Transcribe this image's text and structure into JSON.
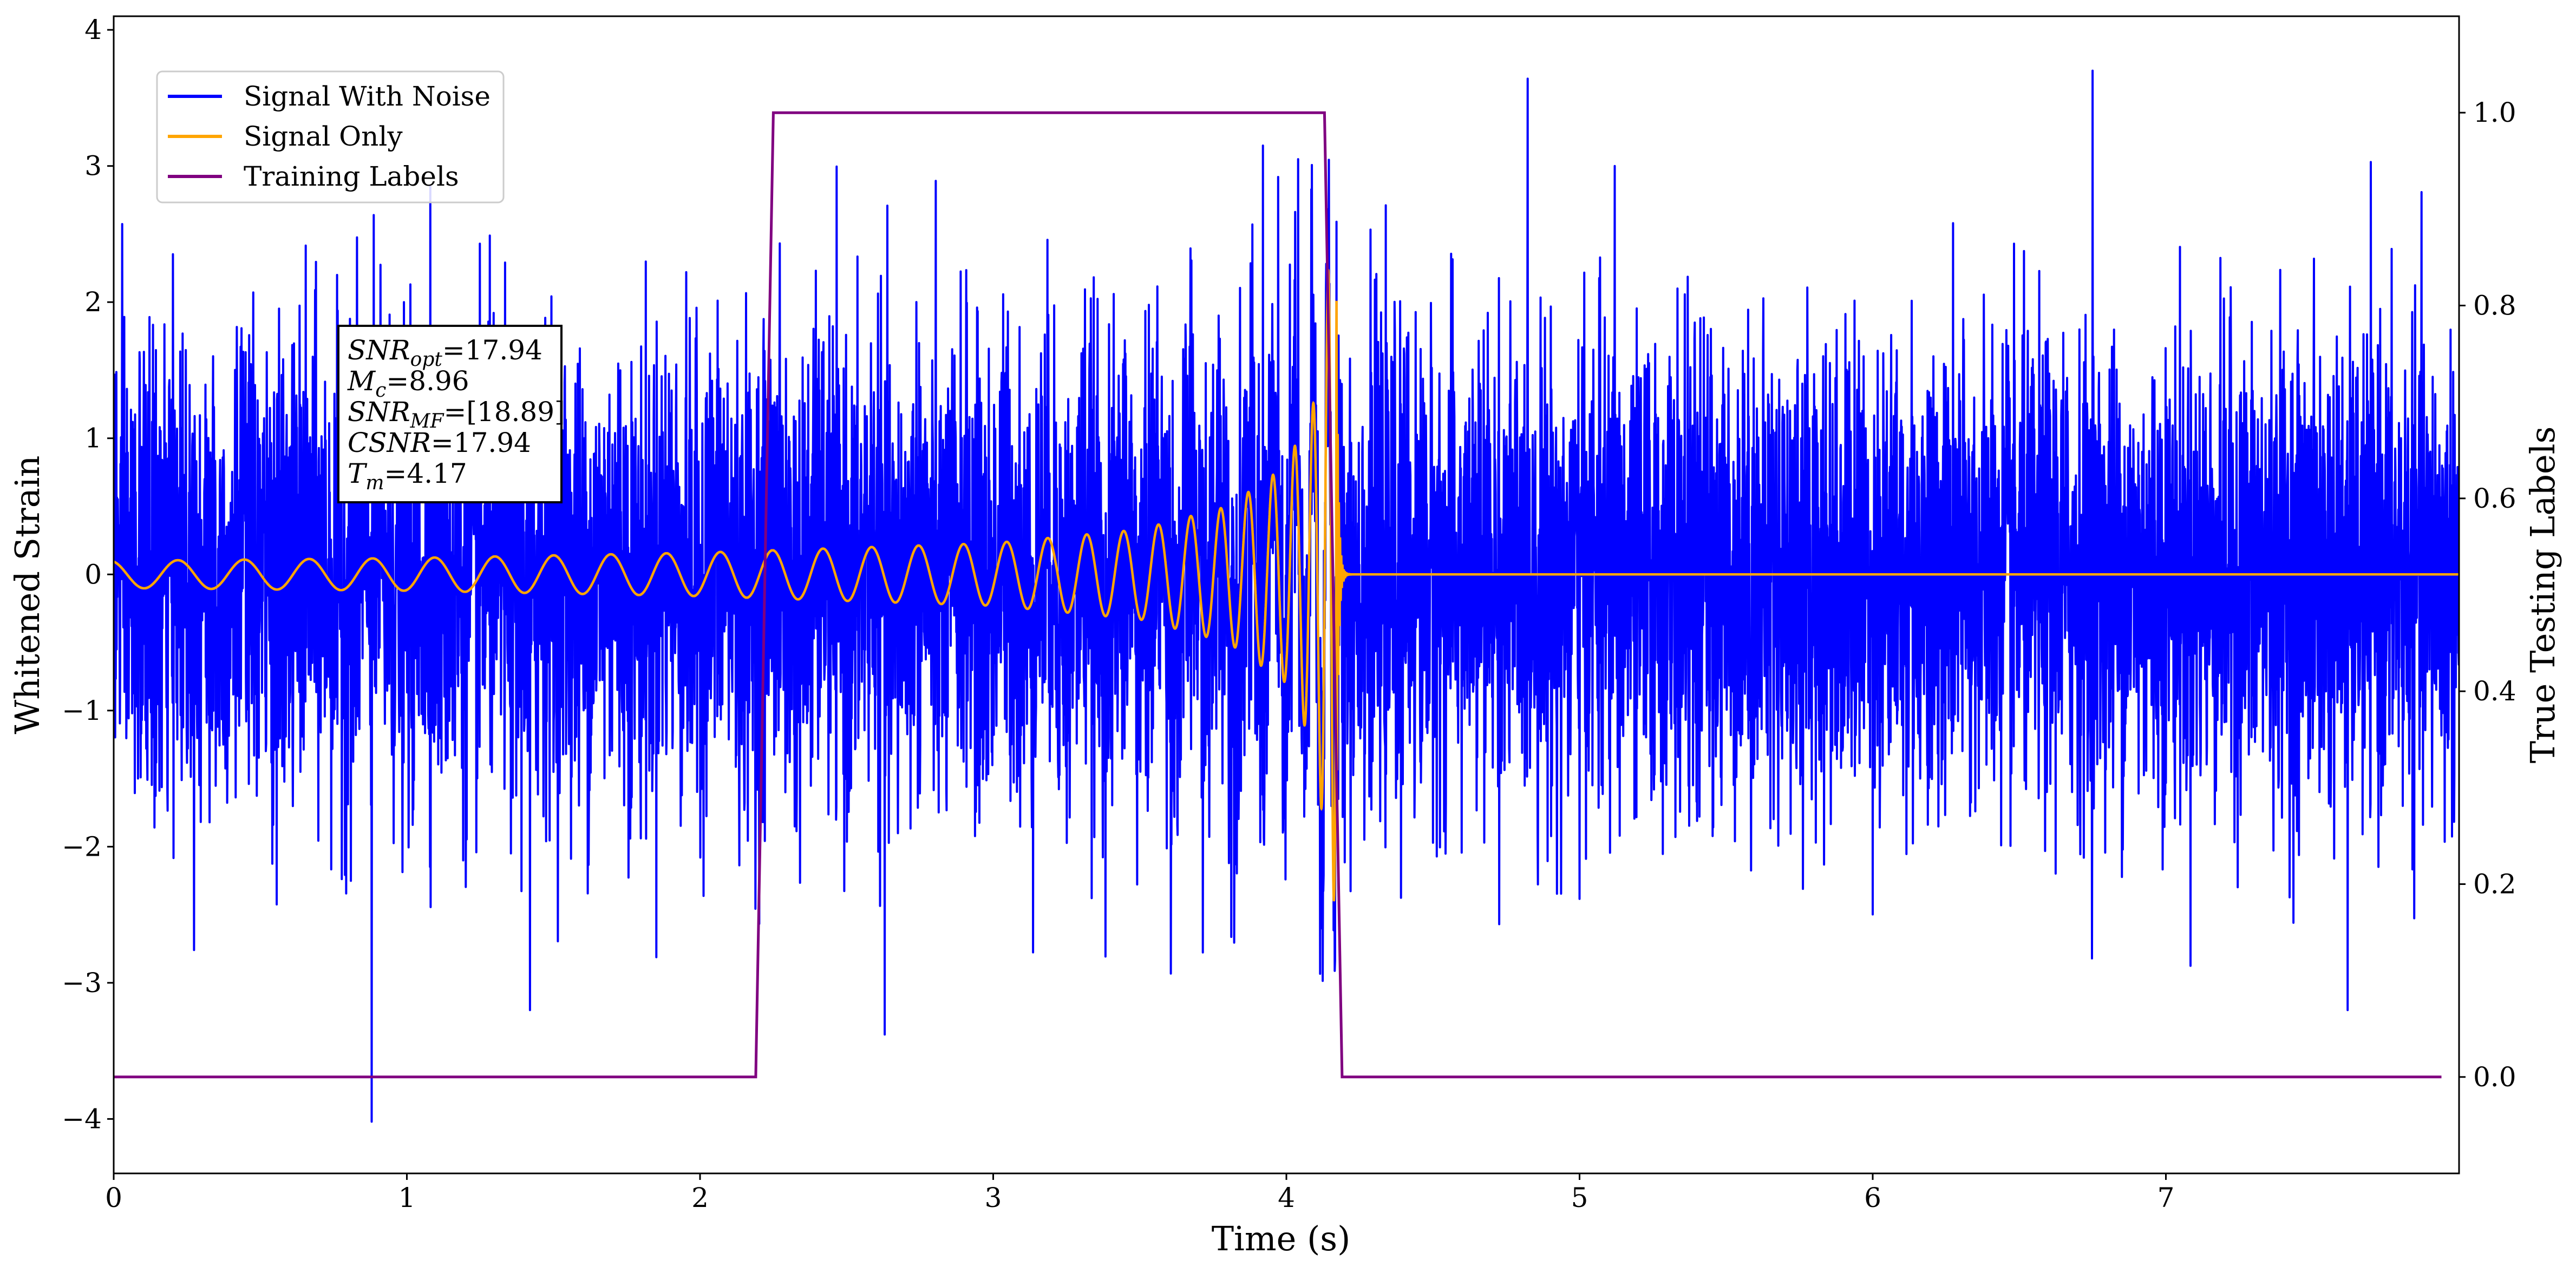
{
  "chart_data": {
    "type": "line",
    "title": "",
    "xlabel": "Time (s)",
    "ylabel": "Whitened Strain",
    "y2label": "True Testing Labels",
    "xlim": [
      0,
      8
    ],
    "ylim": [
      -4.4,
      4.1
    ],
    "y2lim": [
      -0.1,
      1.1
    ],
    "xticks": [
      "0",
      "1",
      "2",
      "3",
      "4",
      "5",
      "6",
      "7"
    ],
    "yticks": [
      "−4",
      "−3",
      "−2",
      "−1",
      "0",
      "1",
      "2",
      "3",
      "4"
    ],
    "y2ticks": [
      "0.0",
      "0.2",
      "0.4",
      "0.6",
      "0.8",
      "1.0"
    ],
    "grid": false,
    "legend_position": "top-left",
    "series": [
      {
        "name": "Signal With Noise",
        "color": "#0000ff",
        "axis": "left",
        "noise_std": 0.85,
        "peaks": [
          {
            "x": 0.88,
            "y": -4.02
          },
          {
            "x": 1.08,
            "y": 2.85
          },
          {
            "x": 1.42,
            "y": -3.2
          },
          {
            "x": 2.63,
            "y": -3.38
          },
          {
            "x": 3.92,
            "y": 3.15
          },
          {
            "x": 4.04,
            "y": 3.05
          },
          {
            "x": 5.12,
            "y": 3.0
          },
          {
            "x": 6.75,
            "y": 3.7
          },
          {
            "x": 7.62,
            "y": -3.2
          }
        ]
      },
      {
        "name": "Signal Only",
        "color": "#ffa500",
        "axis": "left",
        "merger_time": 4.17,
        "envelope": [
          {
            "x": 0.0,
            "y": 0.1
          },
          {
            "x": 1.0,
            "y": 0.12
          },
          {
            "x": 2.0,
            "y": 0.16
          },
          {
            "x": 3.0,
            "y": 0.23
          },
          {
            "x": 3.5,
            "y": 0.33
          },
          {
            "x": 3.8,
            "y": 0.5
          },
          {
            "x": 4.0,
            "y": 0.8
          },
          {
            "x": 4.1,
            "y": 1.3
          },
          {
            "x": 4.15,
            "y": 2.4
          }
        ],
        "after_merger": 0.0
      },
      {
        "name": "Training Labels",
        "color": "#800080",
        "axis": "right",
        "points": [
          {
            "x": 0.0,
            "y": 0.0
          },
          {
            "x": 2.19,
            "y": 0.0
          },
          {
            "x": 2.25,
            "y": 1.0
          },
          {
            "x": 4.13,
            "y": 1.0
          },
          {
            "x": 4.19,
            "y": 0.0
          },
          {
            "x": 7.94,
            "y": 0.0
          }
        ]
      }
    ],
    "annotation": {
      "lines": [
        {
          "label": "SNR",
          "sub": "opt",
          "value": "=17.94"
        },
        {
          "label": "M",
          "sub": "c",
          "value": "=8.96"
        },
        {
          "label": "SNR",
          "sub": "MF",
          "value": "=[18.89]"
        },
        {
          "label": "CSNR",
          "sub": "",
          "value": "=17.94"
        },
        {
          "label": "T",
          "sub": "m",
          "value": "=4.17"
        }
      ]
    }
  }
}
